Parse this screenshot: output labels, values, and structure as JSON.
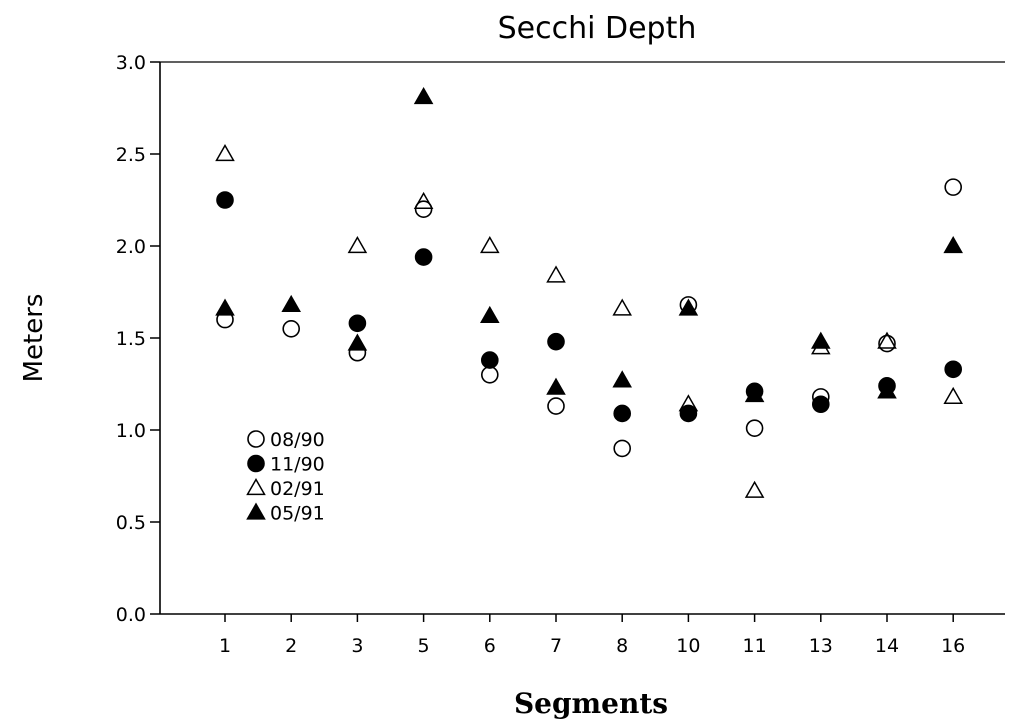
{
  "chart_data": {
    "type": "scatter",
    "title": "Secchi Depth",
    "xlabel": "Segments",
    "ylabel": "Meters",
    "categories": [
      "1",
      "2",
      "3",
      "5",
      "6",
      "7",
      "8",
      "10",
      "11",
      "13",
      "14",
      "16"
    ],
    "ylim": [
      0,
      3.0
    ],
    "yticks": [
      "0.0",
      "0.5",
      "1.0",
      "1.5",
      "2.0",
      "2.5",
      "3.0"
    ],
    "grid": false,
    "legend_position": "left-center",
    "series": [
      {
        "name": "08/90",
        "marker": "circle-open",
        "values": [
          1.6,
          1.55,
          1.42,
          2.2,
          1.3,
          1.13,
          0.9,
          1.68,
          1.01,
          1.18,
          1.47,
          2.32
        ]
      },
      {
        "name": "11/90",
        "marker": "circle-filled",
        "values": [
          2.25,
          null,
          1.58,
          1.94,
          1.38,
          1.48,
          1.09,
          1.09,
          1.21,
          1.14,
          1.24,
          1.33
        ]
      },
      {
        "name": "02/91",
        "marker": "triangle-open",
        "values": [
          2.5,
          null,
          2.0,
          2.24,
          2.0,
          1.84,
          1.66,
          1.14,
          0.67,
          1.45,
          1.48,
          1.18
        ]
      },
      {
        "name": "05/91",
        "marker": "triangle-filled",
        "values": [
          1.66,
          1.68,
          1.47,
          2.81,
          1.62,
          1.23,
          1.27,
          1.66,
          1.19,
          1.48,
          1.21,
          2.0
        ]
      }
    ]
  }
}
